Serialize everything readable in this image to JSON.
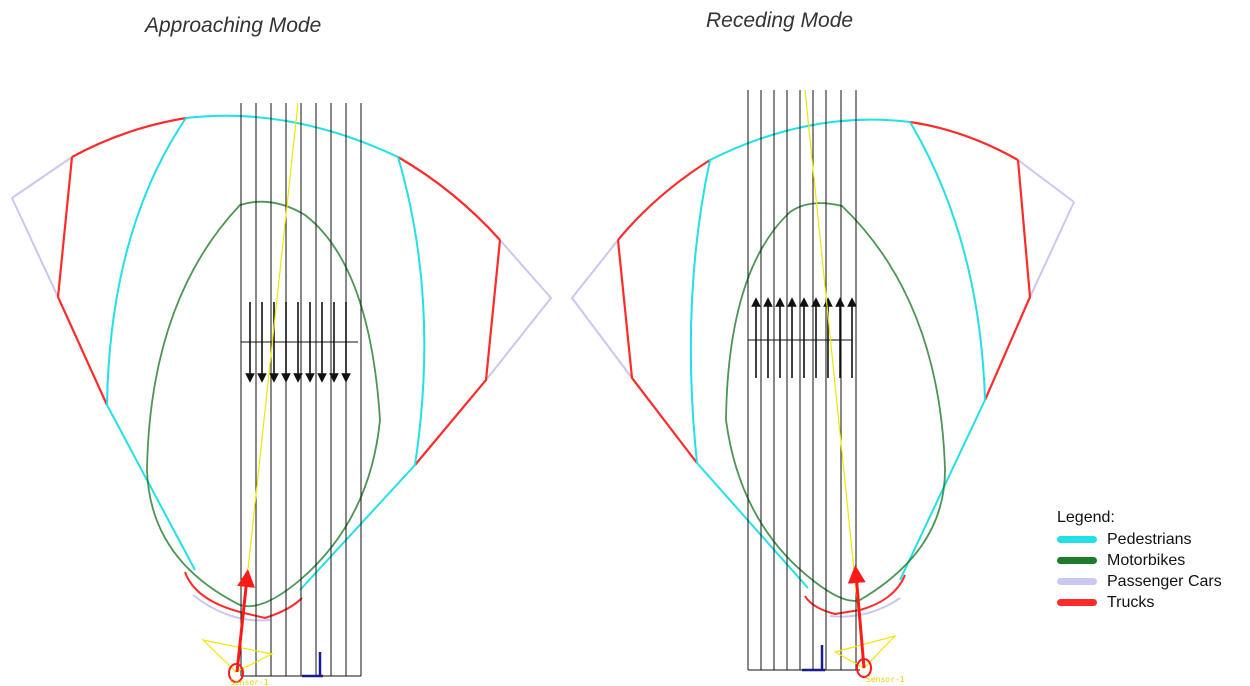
{
  "titles": {
    "approaching": "Approaching Mode",
    "receding": "Receding Mode"
  },
  "legend": {
    "title": "Legend:",
    "items": [
      {
        "label": "Pedestrians",
        "color": "#22e0e8"
      },
      {
        "label": "Motorbikes",
        "color": "#1f7a2a"
      },
      {
        "label": "Passenger Cars",
        "color": "#c8c8f0"
      },
      {
        "label": "Trucks",
        "color": "#ff2a2a"
      }
    ]
  },
  "sensor_label": "Sensor-1",
  "colors": {
    "lanes": "#111111",
    "sensor_beam": "#f2e600",
    "sensor_vector": "#ff1a1a",
    "axis": "#1a1a90"
  }
}
